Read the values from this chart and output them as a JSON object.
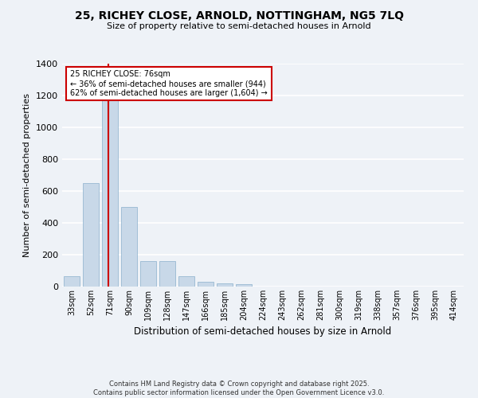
{
  "title_line1": "25, RICHEY CLOSE, ARNOLD, NOTTINGHAM, NG5 7LQ",
  "title_line2": "Size of property relative to semi-detached houses in Arnold",
  "xlabel": "Distribution of semi-detached houses by size in Arnold",
  "ylabel": "Number of semi-detached properties",
  "categories": [
    "33sqm",
    "52sqm",
    "71sqm",
    "90sqm",
    "109sqm",
    "128sqm",
    "147sqm",
    "166sqm",
    "185sqm",
    "204sqm",
    "224sqm",
    "243sqm",
    "262sqm",
    "281sqm",
    "300sqm",
    "319sqm",
    "338sqm",
    "357sqm",
    "376sqm",
    "395sqm",
    "414sqm"
  ],
  "bar_values": [
    65,
    650,
    1170,
    500,
    160,
    160,
    65,
    30,
    20,
    15,
    0,
    0,
    0,
    0,
    0,
    0,
    0,
    0,
    0,
    0,
    0
  ],
  "bar_color": "#c8d8e8",
  "bar_edge_color": "#8ab0cc",
  "property_label": "25 RICHEY CLOSE: 76sqm",
  "pct_smaller": 36,
  "n_smaller": 944,
  "pct_larger": 62,
  "n_larger": 1604,
  "vline_color": "#cc0000",
  "ylim": [
    0,
    1400
  ],
  "yticks": [
    0,
    200,
    400,
    600,
    800,
    1000,
    1200,
    1400
  ],
  "background_color": "#eef2f7",
  "grid_color": "#ffffff",
  "footer_line1": "Contains HM Land Registry data © Crown copyright and database right 2025.",
  "footer_line2": "Contains public sector information licensed under the Open Government Licence v3.0."
}
